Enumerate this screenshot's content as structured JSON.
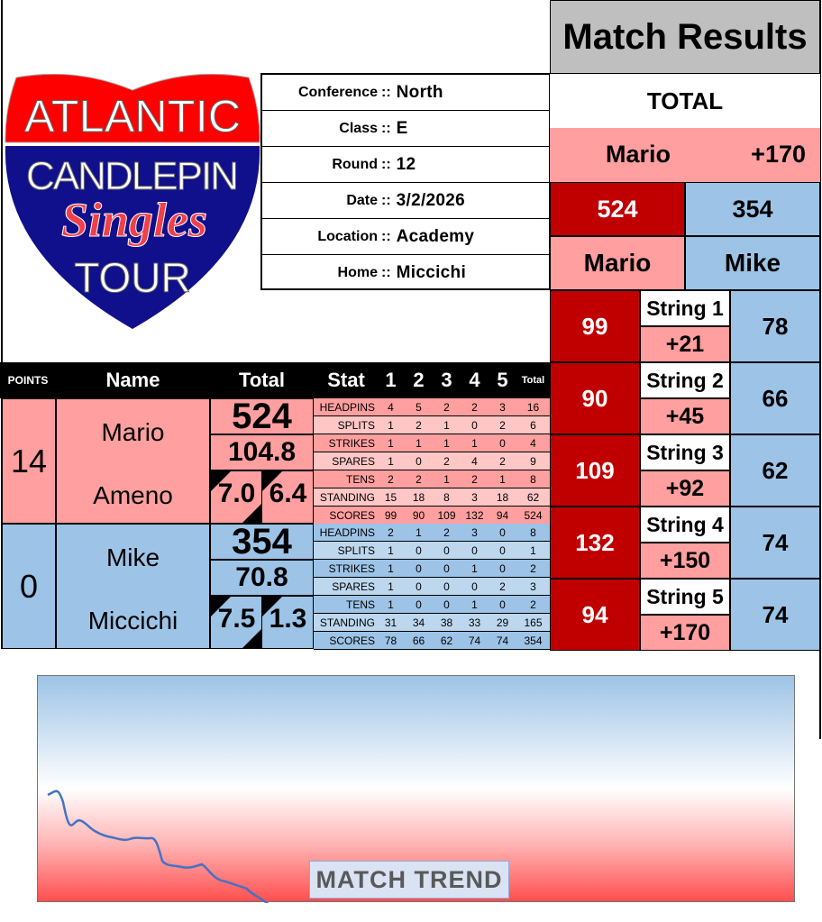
{
  "logo": {
    "line1": "ATLANTIC",
    "line2": "CANDLEPIN",
    "line3": "Singles",
    "line4": "TOUR"
  },
  "info": [
    {
      "label": "Conference",
      "value": "North"
    },
    {
      "label": "Class",
      "value": "E"
    },
    {
      "label": "Round",
      "value": "12"
    },
    {
      "label": "Date",
      "value": "3/2/2026"
    },
    {
      "label": "Location",
      "value": "Academy"
    },
    {
      "label": "Home",
      "value": "Miccichi"
    }
  ],
  "separator": "::",
  "results": {
    "title": "Match Results",
    "total_label": "TOTAL",
    "leader": "Mario",
    "leader_margin": "+170",
    "home_total": "524",
    "away_total": "354",
    "home_name": "Mario",
    "away_name": "Mike",
    "strings": [
      {
        "label": "String 1",
        "home": "99",
        "away": "78",
        "diff": "+21"
      },
      {
        "label": "String 2",
        "home": "90",
        "away": "66",
        "diff": "+45"
      },
      {
        "label": "String 3",
        "home": "109",
        "away": "62",
        "diff": "+92"
      },
      {
        "label": "String 4",
        "home": "132",
        "away": "74",
        "diff": "+150"
      },
      {
        "label": "String 5",
        "home": "94",
        "away": "74",
        "diff": "+170"
      }
    ]
  },
  "table": {
    "headers": {
      "points": "POINTS",
      "name": "Name",
      "total": "Total",
      "stat": "Stat",
      "cols": [
        "1",
        "2",
        "3",
        "4",
        "5"
      ],
      "sum": "Total"
    },
    "stat_labels": [
      "HEADPINS",
      "SPLITS",
      "STRIKES",
      "SPARES",
      "TENS",
      "STANDING",
      "SCORES"
    ],
    "players": [
      {
        "points": "14",
        "first": "Mario",
        "last": "Ameno",
        "total": "524",
        "avg": "104.8",
        "a": "7.0",
        "b": "6.4",
        "stats": [
          [
            "4",
            "5",
            "2",
            "2",
            "3",
            "16"
          ],
          [
            "1",
            "2",
            "1",
            "0",
            "2",
            "6"
          ],
          [
            "1",
            "1",
            "1",
            "1",
            "0",
            "4"
          ],
          [
            "1",
            "0",
            "2",
            "4",
            "2",
            "9"
          ],
          [
            "2",
            "2",
            "1",
            "2",
            "1",
            "8"
          ],
          [
            "15",
            "18",
            "8",
            "3",
            "18",
            "62"
          ],
          [
            "99",
            "90",
            "109",
            "132",
            "94",
            "524"
          ]
        ]
      },
      {
        "points": "0",
        "first": "Mike",
        "last": "Miccichi",
        "total": "354",
        "avg": "70.8",
        "a": "7.5",
        "b": "1.3",
        "stats": [
          [
            "2",
            "1",
            "2",
            "3",
            "0",
            "8"
          ],
          [
            "1",
            "0",
            "0",
            "0",
            "0",
            "1"
          ],
          [
            "1",
            "0",
            "0",
            "1",
            "0",
            "2"
          ],
          [
            "1",
            "0",
            "0",
            "0",
            "2",
            "3"
          ],
          [
            "1",
            "0",
            "0",
            "1",
            "0",
            "2"
          ],
          [
            "31",
            "34",
            "38",
            "33",
            "29",
            "165"
          ],
          [
            "78",
            "66",
            "62",
            "74",
            "74",
            "354"
          ]
        ]
      }
    ]
  },
  "trend": {
    "label": "MATCH TREND",
    "line_color": "#4472c4"
  }
}
